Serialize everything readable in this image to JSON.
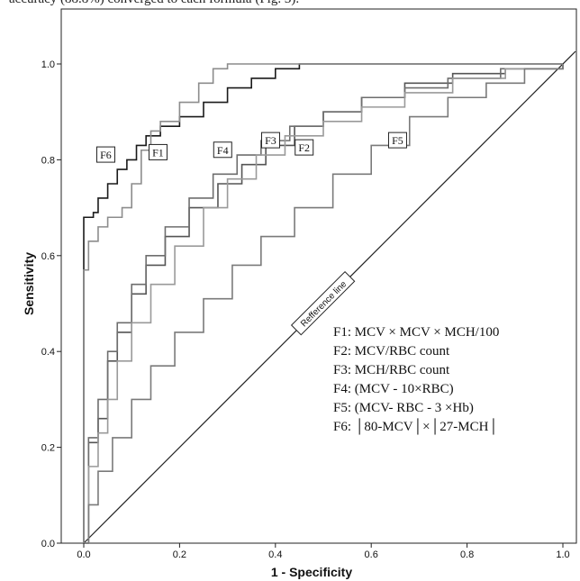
{
  "caption": "accuracy (88.8%) converged to each formula (Fig. 3).",
  "chart_data": {
    "type": "line",
    "xlabel": "1 - Specificity",
    "ylabel": "Sensitivity",
    "xlim": [
      0,
      1
    ],
    "ylim": [
      0,
      1
    ],
    "x_ticks": [
      "0.0",
      "0.2",
      "0.4",
      "0.6",
      "0.8",
      "1.0"
    ],
    "y_ticks": [
      "0.0",
      "0.2",
      "0.4",
      "0.6",
      "0.8",
      "1.0"
    ],
    "grid": false,
    "reference_line": {
      "label": "Refference line",
      "points": [
        [
          0,
          0
        ],
        [
          1,
          1
        ]
      ]
    },
    "legend": {
      "placement": "bottom-right",
      "entries": [
        "F1: MCV × MCV × MCH/100",
        "F2: MCV/RBC count",
        "F3: MCH/RBC count",
        "F4: (MCV - 10×RBC)",
        "F5: (MCV- RBC - 3 ×Hb)",
        "F6: │80-MCV│×│27-MCH│"
      ]
    },
    "series": [
      {
        "tag": "F6",
        "color": "#1a1a1a",
        "tag_at": [
          0.046,
          0.81
        ],
        "points": [
          [
            0,
            0
          ],
          [
            0,
            0.68
          ],
          [
            0.02,
            0.69
          ],
          [
            0.03,
            0.72
          ],
          [
            0.05,
            0.75
          ],
          [
            0.07,
            0.78
          ],
          [
            0.09,
            0.8
          ],
          [
            0.11,
            0.83
          ],
          [
            0.13,
            0.85
          ],
          [
            0.16,
            0.87
          ],
          [
            0.2,
            0.89
          ],
          [
            0.25,
            0.92
          ],
          [
            0.3,
            0.95
          ],
          [
            0.35,
            0.97
          ],
          [
            0.4,
            0.99
          ],
          [
            0.45,
            1.0
          ],
          [
            1,
            1
          ]
        ]
      },
      {
        "tag": "F1",
        "color": "#8c8c8c",
        "tag_at": [
          0.155,
          0.815
        ],
        "points": [
          [
            0,
            0
          ],
          [
            0,
            0.57
          ],
          [
            0.01,
            0.63
          ],
          [
            0.03,
            0.66
          ],
          [
            0.05,
            0.68
          ],
          [
            0.08,
            0.7
          ],
          [
            0.1,
            0.75
          ],
          [
            0.12,
            0.82
          ],
          [
            0.14,
            0.86
          ],
          [
            0.16,
            0.88
          ],
          [
            0.2,
            0.92
          ],
          [
            0.24,
            0.96
          ],
          [
            0.27,
            0.99
          ],
          [
            0.3,
            1.0
          ],
          [
            1,
            1
          ]
        ]
      },
      {
        "tag": "F4",
        "color": "#555555",
        "tag_at": [
          0.29,
          0.82
        ],
        "points": [
          [
            0,
            0
          ],
          [
            0.01,
            0.21
          ],
          [
            0.03,
            0.26
          ],
          [
            0.05,
            0.38
          ],
          [
            0.07,
            0.44
          ],
          [
            0.1,
            0.52
          ],
          [
            0.13,
            0.58
          ],
          [
            0.17,
            0.64
          ],
          [
            0.22,
            0.7
          ],
          [
            0.28,
            0.75
          ],
          [
            0.33,
            0.79
          ],
          [
            0.38,
            0.83
          ],
          [
            0.44,
            0.87
          ],
          [
            0.5,
            0.9
          ],
          [
            0.58,
            0.93
          ],
          [
            0.67,
            0.96
          ],
          [
            0.77,
            0.98
          ],
          [
            0.88,
            0.99
          ],
          [
            1,
            1
          ]
        ]
      },
      {
        "tag": "F3",
        "color": "#6e6e6e",
        "tag_at": [
          0.39,
          0.84
        ],
        "points": [
          [
            0,
            0
          ],
          [
            0.01,
            0.22
          ],
          [
            0.03,
            0.3
          ],
          [
            0.05,
            0.4
          ],
          [
            0.07,
            0.46
          ],
          [
            0.1,
            0.54
          ],
          [
            0.13,
            0.6
          ],
          [
            0.17,
            0.66
          ],
          [
            0.22,
            0.72
          ],
          [
            0.27,
            0.77
          ],
          [
            0.32,
            0.81
          ],
          [
            0.37,
            0.84
          ],
          [
            0.43,
            0.87
          ],
          [
            0.5,
            0.9
          ],
          [
            0.58,
            0.93
          ],
          [
            0.67,
            0.95
          ],
          [
            0.76,
            0.97
          ],
          [
            0.87,
            0.99
          ],
          [
            1,
            1
          ]
        ]
      },
      {
        "tag": "F2",
        "color": "#9a9a9a",
        "tag_at": [
          0.46,
          0.825
        ],
        "points": [
          [
            0,
            0
          ],
          [
            0.01,
            0.16
          ],
          [
            0.03,
            0.23
          ],
          [
            0.05,
            0.3
          ],
          [
            0.07,
            0.38
          ],
          [
            0.1,
            0.46
          ],
          [
            0.14,
            0.54
          ],
          [
            0.19,
            0.62
          ],
          [
            0.25,
            0.7
          ],
          [
            0.3,
            0.76
          ],
          [
            0.36,
            0.81
          ],
          [
            0.42,
            0.85
          ],
          [
            0.5,
            0.88
          ],
          [
            0.58,
            0.91
          ],
          [
            0.67,
            0.94
          ],
          [
            0.77,
            0.97
          ],
          [
            0.88,
            0.99
          ],
          [
            1,
            1
          ]
        ]
      },
      {
        "tag": "F5",
        "color": "#7a7a7a",
        "tag_at": [
          0.655,
          0.84
        ],
        "points": [
          [
            0,
            0
          ],
          [
            0.01,
            0.08
          ],
          [
            0.03,
            0.15
          ],
          [
            0.06,
            0.22
          ],
          [
            0.1,
            0.3
          ],
          [
            0.14,
            0.37
          ],
          [
            0.19,
            0.44
          ],
          [
            0.25,
            0.51
          ],
          [
            0.31,
            0.58
          ],
          [
            0.37,
            0.64
          ],
          [
            0.44,
            0.7
          ],
          [
            0.52,
            0.77
          ],
          [
            0.6,
            0.83
          ],
          [
            0.68,
            0.89
          ],
          [
            0.76,
            0.93
          ],
          [
            0.84,
            0.96
          ],
          [
            0.92,
            0.99
          ],
          [
            1,
            1
          ]
        ]
      }
    ]
  }
}
